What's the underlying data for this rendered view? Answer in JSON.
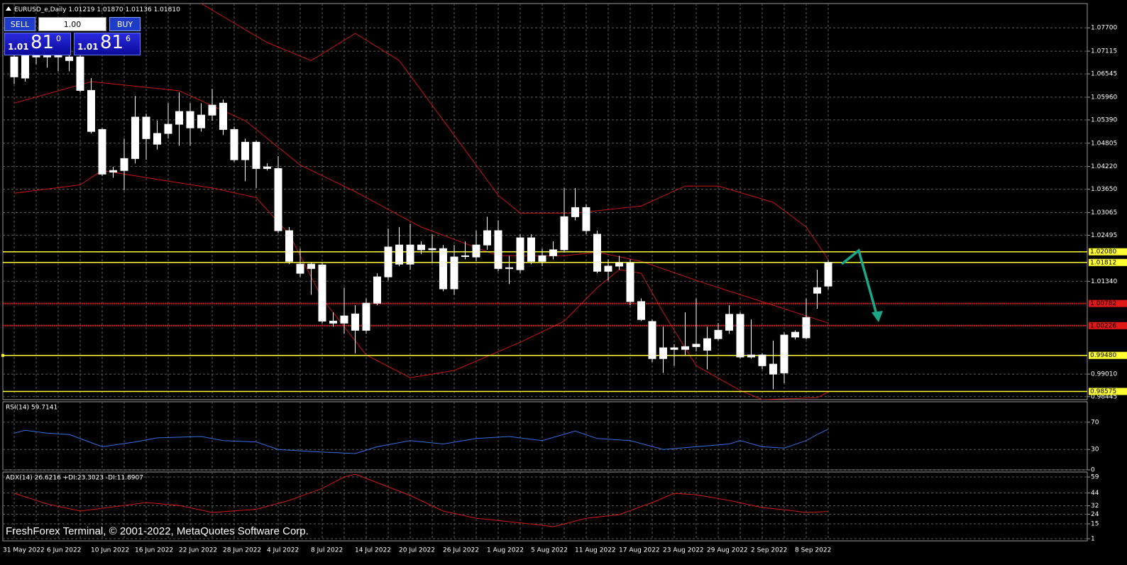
{
  "chart_data": [
    {
      "type": "candlestick",
      "title": "EURUSD_e,Daily",
      "header_values": [
        "1.01219",
        "1.01870",
        "1.01136",
        "1.01810"
      ],
      "categories": [
        "31 May 2022",
        null,
        null,
        null,
        "6 Jun 2022",
        null,
        null,
        null,
        "10 Jun 2022",
        null,
        null,
        null,
        "16 Jun 2022",
        null,
        null,
        null,
        "22 Jun 2022",
        null,
        null,
        null,
        "28 Jun 2022",
        null,
        null,
        null,
        "4 Jul 2022",
        null,
        null,
        null,
        "8 Jul 2022",
        null,
        null,
        null,
        "14 Jul 2022",
        null,
        null,
        null,
        "20 Jul 2022",
        null,
        null,
        null,
        "26 Jul 2022",
        null,
        null,
        null,
        "1 Aug 2022",
        null,
        null,
        null,
        "5 Aug 2022",
        null,
        null,
        null,
        "11 Aug 2022",
        null,
        null,
        null,
        "17 Aug 2022",
        null,
        null,
        null,
        "23 Aug 2022",
        null,
        null,
        null,
        "29 Aug 2022",
        null,
        null,
        null,
        "2 Sep 2022",
        null,
        null,
        null,
        "8 Sep 2022",
        null,
        null
      ],
      "open": [
        1.0647,
        1.0644,
        1.0706,
        1.0697,
        1.0701,
        1.0697,
        1.0697,
        1.0613,
        1.0515,
        1.0412,
        1.0412,
        1.0442,
        1.0492,
        1.0478,
        1.0505,
        1.0528,
        1.056,
        1.0519,
        1.0551,
        1.0581,
        1.0515,
        1.0483,
        1.0483,
        1.0421,
        1.0417,
        1.0261,
        1.0177,
        1.0166,
        1.0175,
        1.0034,
        1.0029,
        1.0052,
        1.0011,
        1.0079,
        1.0145,
        1.0177,
        1.0225,
        1.0225,
        1.0213,
        1.0216,
        1.0115,
        1.0198,
        1.0195,
        1.0225,
        1.0261,
        1.0166,
        1.0163,
        1.0243,
        1.0184,
        1.0198,
        1.0213,
        1.0296,
        1.0319,
        1.0252,
        1.0159,
        1.0172,
        1.018,
        1.0083,
        1.0033,
        0.994,
        0.9967,
        0.9963,
        0.997,
        0.9961,
        0.999,
        1.0011,
        1.0051,
        0.9944,
        0.9949,
        0.9926,
        0.9904,
        0.9994,
        0.9992,
        1.0104,
        1.01219
      ],
      "high": [
        1.0733,
        1.0733,
        1.0733,
        1.0715,
        1.0715,
        1.0715,
        1.0706,
        1.0644,
        1.0519,
        1.0421,
        1.0492,
        1.0599,
        1.0555,
        1.0537,
        1.0581,
        1.0608,
        1.0581,
        1.0581,
        1.0617,
        1.059,
        1.0522,
        1.0492,
        1.0487,
        1.043,
        1.0448,
        1.027,
        1.0216,
        1.018,
        1.018,
        1.0056,
        1.0118,
        1.0074,
        1.0091,
        1.0154,
        1.0266,
        1.027,
        1.0278,
        1.0234,
        1.0252,
        1.0225,
        1.0225,
        1.0234,
        1.0261,
        1.0296,
        1.0287,
        1.0198,
        1.0252,
        1.0252,
        1.0216,
        1.0234,
        1.0368,
        1.0368,
        1.0327,
        1.0261,
        1.0189,
        1.0198,
        1.0189,
        1.0091,
        1.0038,
        1.002,
        0.9976,
        1.0056,
        1.0091,
        1.002,
        1.0029,
        1.0074,
        1.0056,
        1.0038,
        0.9953,
        0.9985,
        1.0006,
        1.0011,
        1.0091,
        1.0163,
        1.0187
      ],
      "low": [
        1.0629,
        1.0635,
        1.0679,
        1.067,
        1.0661,
        1.0661,
        1.0608,
        1.0505,
        1.0398,
        1.0394,
        1.0362,
        1.043,
        1.0439,
        1.0465,
        1.0492,
        1.0474,
        1.0474,
        1.051,
        1.0537,
        1.0501,
        1.0433,
        1.0385,
        1.0368,
        1.0412,
        1.0255,
        1.0177,
        1.0145,
        1.01,
        1.0029,
        1.002,
        1.0002,
        0.9953,
        1.0002,
        1.0074,
        1.0136,
        1.0172,
        1.0163,
        1.0202,
        1.018,
        1.0109,
        1.01,
        1.0189,
        1.0184,
        1.0213,
        1.0159,
        1.0127,
        1.0154,
        1.0177,
        1.0172,
        1.0189,
        1.0207,
        1.0287,
        1.0252,
        1.0154,
        1.0136,
        1.0163,
        1.0074,
        1.0034,
        0.9931,
        0.9904,
        0.9922,
        0.9949,
        0.9958,
        0.9913,
        0.9985,
        1.0002,
        0.994,
        0.994,
        0.9913,
        0.9863,
        0.9878,
        0.9988,
        0.9988,
        1.0065,
        1.01136
      ],
      "close": [
        1.0697,
        1.0706,
        1.0697,
        1.0701,
        1.0697,
        1.0688,
        1.0613,
        1.051,
        1.0403,
        1.0408,
        1.0442,
        1.0546,
        1.0546,
        1.0505,
        1.0528,
        1.056,
        1.0519,
        1.0551,
        1.0576,
        1.0515,
        1.0439,
        1.0439,
        1.0417,
        1.0417,
        1.0261,
        1.0184,
        1.0154,
        1.0177,
        1.0034,
        1.0029,
        1.0047,
        1.0011,
        1.0079,
        1.0145,
        1.022,
        1.0225,
        1.0177,
        1.0213,
        1.0216,
        1.0115,
        1.0195,
        1.0196,
        1.0225,
        1.0261,
        1.0166,
        1.0168,
        1.0243,
        1.0184,
        1.0198,
        1.0213,
        1.0296,
        1.0319,
        1.0261,
        1.0159,
        1.0172,
        1.018,
        1.0083,
        1.0038,
        0.994,
        0.9967,
        0.9963,
        0.997,
        0.9976,
        0.999,
        1.0011,
        1.0051,
        0.9944,
        0.9949,
        0.9922,
        0.9901,
        0.9999,
        1.0006,
        1.0043,
        1.0118,
        1.0181
      ],
      "color": "#ffffff",
      "bands": [
        {
          "color": "#c81414",
          "x": [
            17,
            23,
            27,
            31,
            35,
            40,
            44,
            46,
            51,
            57,
            61,
            64,
            69,
            72,
            74
          ],
          "values": [
            1.0831,
            1.0733,
            1.0688,
            1.0756,
            1.0688,
            1.0501,
            1.035,
            1.0305,
            1.0305,
            1.0323,
            1.0373,
            1.0373,
            1.0332,
            1.027,
            1.0189
          ]
        },
        {
          "color": "#c81414",
          "x": [
            0,
            7,
            15,
            21,
            26,
            31,
            37,
            44,
            50,
            53,
            57,
            63,
            69,
            74
          ],
          "values": [
            1.0581,
            1.0635,
            1.0612,
            1.0537,
            1.0426,
            1.0359,
            1.027,
            1.0198,
            1.0198,
            1.0207,
            1.0184,
            1.0127,
            1.0074,
            1.0029
          ]
        },
        {
          "color": "#c81414",
          "x": [
            0,
            6,
            8,
            12,
            18,
            22,
            25,
            28,
            32,
            36,
            40,
            46,
            50,
            53,
            55,
            57,
            59,
            62,
            66,
            68,
            73,
            74
          ],
          "values": [
            1.0355,
            1.0376,
            1.0412,
            1.0394,
            1.0368,
            1.0344,
            1.0252,
            1.0091,
            0.9949,
            0.9892,
            0.991,
            0.9981,
            1.0034,
            1.0118,
            1.0163,
            1.0154,
            1.0056,
            0.9922,
            0.986,
            0.9837,
            0.9842,
            0.9856
          ]
        }
      ],
      "levels": {
        "values": [
          1.0208,
          1.01812,
          1.00782,
          1.00226,
          0.9948,
          0.98575
        ],
        "value_labels": [
          "1.02080",
          "1.01812",
          "1.00782",
          "1.00226",
          "0.99480",
          "0.98575"
        ],
        "colors": [
          "#ffff33",
          "#ffff33",
          "#e01818",
          "#e01818",
          "#ffff33",
          "#ffff33"
        ]
      },
      "ylim": [
        0.9837,
        1.0831
      ],
      "yticks": [
        {
          "value": 1.077,
          "label": "1.07700"
        },
        {
          "value": 1.07115,
          "label": "1.07115"
        },
        {
          "value": 1.06545,
          "label": "1.06545"
        },
        {
          "value": 1.0596,
          "label": "1.05960"
        },
        {
          "value": 1.0539,
          "label": "1.05390"
        },
        {
          "value": 1.04805,
          "label": "1.04805"
        },
        {
          "value": 1.0422,
          "label": "1.04220"
        },
        {
          "value": 1.0365,
          "label": "1.03650"
        },
        {
          "value": 1.03065,
          "label": "1.03065"
        },
        {
          "value": 1.02495,
          "label": "1.02495"
        },
        {
          "value": 1.0134,
          "label": "1.01340"
        },
        {
          "value": 0.9901,
          "label": "0.99010"
        },
        {
          "value": 0.98445,
          "label": "0.98445"
        }
      ],
      "grid": true
    },
    {
      "type": "line",
      "title": "RSI(14) 59.7141",
      "series": [
        {
          "color": "#3a6fe0",
          "x": [
            0,
            1,
            3,
            5,
            8,
            11,
            13,
            17,
            19,
            22,
            24,
            27,
            31,
            33,
            36,
            39,
            42,
            45,
            48,
            51,
            53,
            56,
            59,
            62,
            65,
            66,
            68,
            70,
            72,
            73,
            74
          ],
          "values": [
            54,
            58,
            54,
            52,
            34,
            41,
            47,
            49,
            43,
            41,
            30,
            27,
            24,
            34,
            43,
            38,
            46,
            49,
            43,
            57,
            46,
            43,
            30,
            34,
            38,
            43,
            34,
            32,
            43,
            52,
            59.7141
          ]
        }
      ],
      "ylim": [
        0,
        100
      ],
      "yticks": [
        70,
        30,
        0
      ],
      "grid": true
    },
    {
      "type": "line",
      "title": "ADX(14) 26.6216 +DI:23.3023 -DI:11.8907",
      "series": [
        {
          "color": "#d01818",
          "x": [
            0,
            3,
            6,
            10,
            12,
            15,
            18,
            22,
            25,
            28,
            30,
            31,
            33,
            36,
            39,
            42,
            45,
            48,
            49,
            52,
            55,
            58,
            60,
            62,
            65,
            68,
            70,
            72,
            74
          ],
          "values": [
            43.7,
            33.7,
            27,
            32.3,
            35,
            32.3,
            25.7,
            28.7,
            37,
            48.3,
            59,
            61.7,
            53.7,
            41.7,
            27,
            20.3,
            17,
            13.7,
            12.3,
            20.3,
            23.7,
            35,
            43.7,
            42.3,
            37,
            30.3,
            28.3,
            25.7,
            26.6216
          ]
        }
      ],
      "ylim": [
        -1,
        63.7
      ],
      "yticks": [
        59,
        44,
        32,
        24,
        15,
        1
      ],
      "grid": true
    }
  ],
  "trade_panel": {
    "sell": "SELL",
    "buy": "BUY",
    "lot": "1.00",
    "bid": {
      "big": "1.01",
      "main": "81",
      "small": "0"
    },
    "ask": {
      "big": "1.01",
      "main": "81",
      "small": "6"
    }
  },
  "footer": "FreshForex Terminal, © 2001-2022, MetaQuotes Software Corp."
}
